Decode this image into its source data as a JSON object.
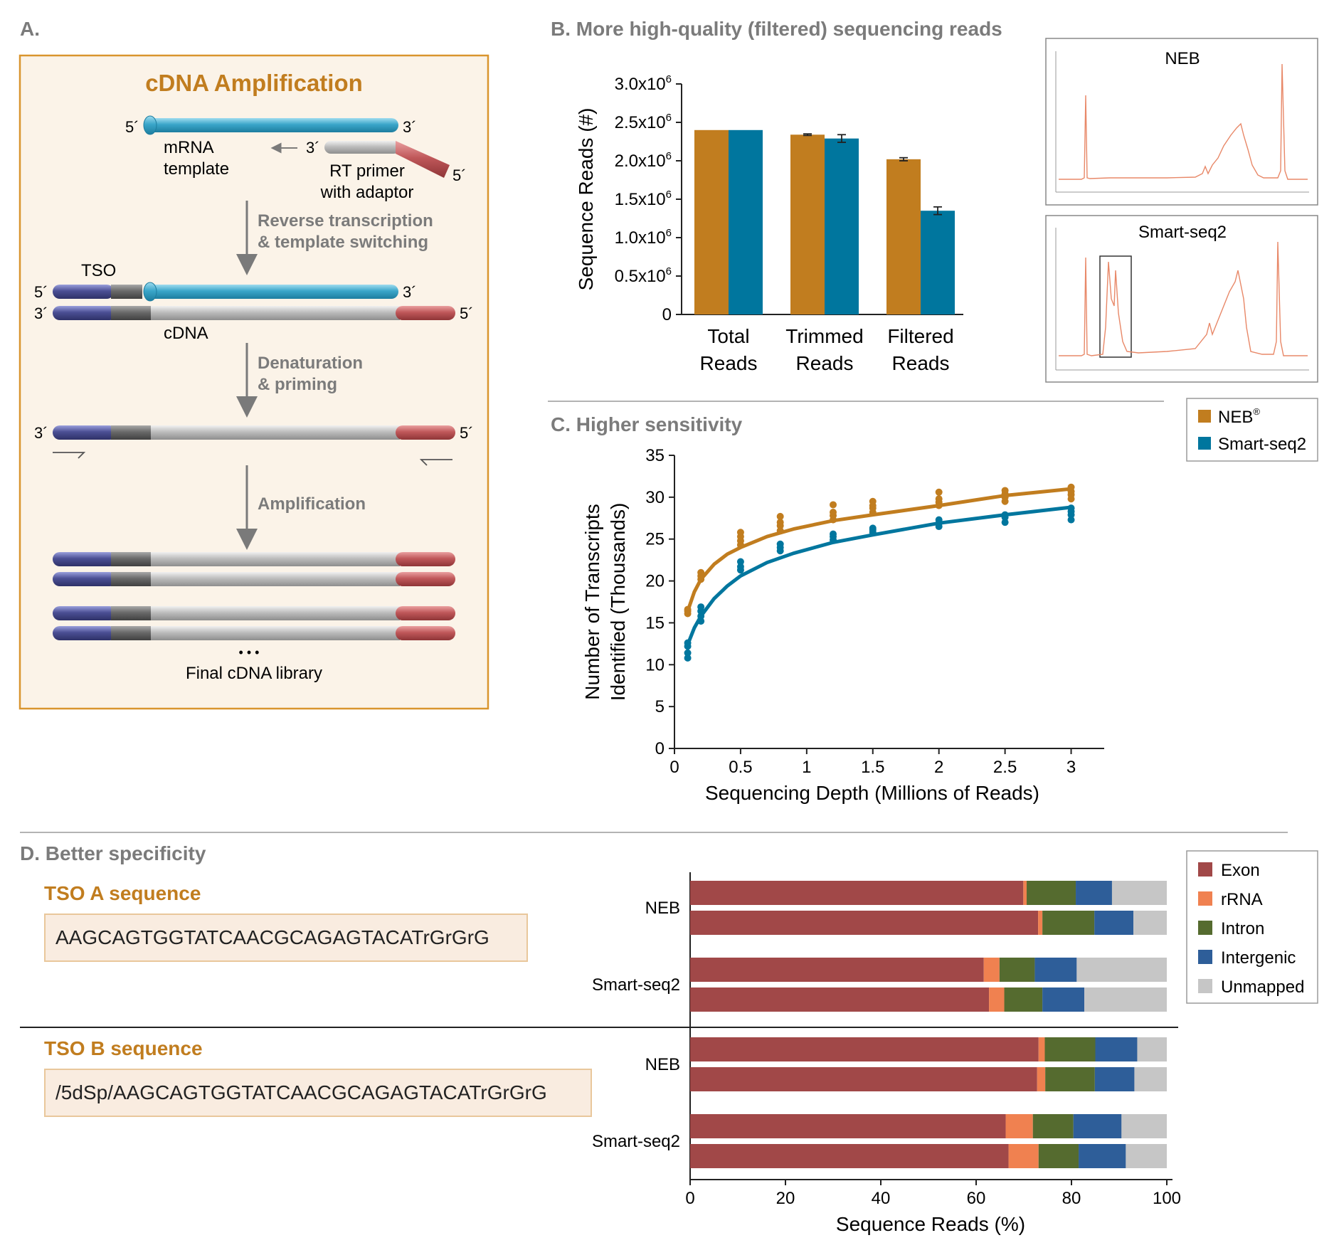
{
  "panel_a": {
    "label": "A.",
    "title": "cDNA Amplification",
    "labels": {
      "five": "5´",
      "three": "3´",
      "mrna_1": "mRNA",
      "mrna_2": "template",
      "rt_1": "RT primer",
      "rt_2": "with adaptor",
      "step1_1": "Reverse transcription",
      "step1_2": "& template switching",
      "tso": "TSO",
      "cdna": "cDNA",
      "step2_1": "Denaturation",
      "step2_2": "& priming",
      "step3": "Amplification",
      "dots": "• • •",
      "final": "Final cDNA library"
    },
    "colors": {
      "frame": "#d9952e",
      "background": "#fbf3e8",
      "mrna": "#3aa6c9",
      "tso": "#4b4f94",
      "adaptor": "#c0585a",
      "cdna": "#bdbdbd",
      "title": "#c17d1f"
    }
  },
  "panel_b": {
    "header": "B. More high-quality (filtered) sequencing reads",
    "insets": [
      {
        "title": "NEB"
      },
      {
        "title": "Smart-seq2"
      }
    ]
  },
  "panel_c": {
    "header": "C. Higher sensitivity"
  },
  "panel_d": {
    "header": "D. Better specificity",
    "tso_a": {
      "title": "TSO A sequence",
      "sequence": "AAGCAGTGGTATCAACGCAGAGTACATrGrGrG"
    },
    "tso_b": {
      "title": "TSO B sequence",
      "sequence": "/5dSp/AAGCAGTGGTATCAACGCAGAGTACATrGrGrG"
    }
  },
  "legend_bc": {
    "items": [
      {
        "name": "NEB",
        "sup": "®",
        "color": "#c17d1f"
      },
      {
        "name": "Smart-seq2",
        "sup": "",
        "color": "#00769e"
      }
    ]
  },
  "chart_data": [
    {
      "id": "B",
      "type": "bar",
      "categories": [
        "Total Reads",
        "Trimmed Reads",
        "Filtered Reads"
      ],
      "category_lines": [
        [
          "Total",
          "Reads"
        ],
        [
          "Trimmed",
          "Reads"
        ],
        [
          "Filtered",
          "Reads"
        ]
      ],
      "series": [
        {
          "name": "NEB",
          "color": "#c17d1f",
          "values": [
            2400000,
            2340000,
            2020000
          ],
          "errors": [
            0,
            10000,
            20000
          ]
        },
        {
          "name": "Smart-seq2",
          "color": "#00769e",
          "values": [
            2400000,
            2290000,
            1350000
          ],
          "errors": [
            0,
            50000,
            50000
          ]
        }
      ],
      "ylabel": "Sequence Reads (#)",
      "ylim": [
        0,
        3000000
      ],
      "yticks": [
        {
          "value": 0,
          "base": "0",
          "sup": ""
        },
        {
          "value": 500000,
          "base": "0.5x10",
          "sup": "6"
        },
        {
          "value": 1000000,
          "base": "1.0x10",
          "sup": "6"
        },
        {
          "value": 1500000,
          "base": "1.5x10",
          "sup": "6"
        },
        {
          "value": 2000000,
          "base": "2.0x10",
          "sup": "6"
        },
        {
          "value": 2500000,
          "base": "2.5x10",
          "sup": "6"
        },
        {
          "value": 3000000,
          "base": "3.0x10",
          "sup": "6"
        }
      ]
    },
    {
      "id": "C",
      "type": "scatter",
      "xlabel": "Sequencing Depth (Millions of Reads)",
      "ylabel_lines": [
        "Number of Transcripts",
        "Identified (Thousands)"
      ],
      "xlim": [
        0,
        3.25
      ],
      "ylim": [
        0,
        35
      ],
      "xticks": [
        0,
        0.5,
        1,
        1.5,
        2,
        2.5,
        3
      ],
      "xtick_labels": [
        "0",
        "0.5",
        "1",
        "1.5",
        "2",
        "2.5",
        "3"
      ],
      "yticks": [
        0,
        5,
        10,
        15,
        20,
        25,
        30,
        35
      ],
      "series": [
        {
          "name": "NEB",
          "color": "#c17d1f",
          "points": [
            [
              0.1,
              16.1
            ],
            [
              0.1,
              16.4
            ],
            [
              0.1,
              16.6
            ],
            [
              0.2,
              20.2
            ],
            [
              0.2,
              20.6
            ],
            [
              0.2,
              21.0
            ],
            [
              0.5,
              24.3
            ],
            [
              0.5,
              24.8
            ],
            [
              0.5,
              25.3
            ],
            [
              0.5,
              25.8
            ],
            [
              0.8,
              26.0
            ],
            [
              0.8,
              26.6
            ],
            [
              0.8,
              27.0
            ],
            [
              0.8,
              27.7
            ],
            [
              1.2,
              27.3
            ],
            [
              1.2,
              27.8
            ],
            [
              1.2,
              28.2
            ],
            [
              1.2,
              29.1
            ],
            [
              1.5,
              28.2
            ],
            [
              1.5,
              28.7
            ],
            [
              1.5,
              29.0
            ],
            [
              1.5,
              29.5
            ],
            [
              2.0,
              29.0
            ],
            [
              2.0,
              29.4
            ],
            [
              2.0,
              29.8
            ],
            [
              2.0,
              30.6
            ],
            [
              2.5,
              29.5
            ],
            [
              2.5,
              30.0
            ],
            [
              2.5,
              30.4
            ],
            [
              2.5,
              30.8
            ],
            [
              3.0,
              29.8
            ],
            [
              3.0,
              30.3
            ],
            [
              3.0,
              30.7
            ],
            [
              3.0,
              31.2
            ]
          ],
          "fit": [
            [
              0.1,
              16.4
            ],
            [
              0.15,
              18.7
            ],
            [
              0.2,
              20.2
            ],
            [
              0.3,
              22.0
            ],
            [
              0.4,
              23.2
            ],
            [
              0.5,
              24.0
            ],
            [
              0.7,
              25.3
            ],
            [
              0.9,
              26.2
            ],
            [
              1.2,
              27.2
            ],
            [
              1.5,
              27.9
            ],
            [
              2.0,
              29.0
            ],
            [
              2.5,
              30.2
            ],
            [
              3.0,
              31.0
            ]
          ]
        },
        {
          "name": "Smart-seq2",
          "color": "#00769e",
          "points": [
            [
              0.1,
              10.8
            ],
            [
              0.1,
              11.4
            ],
            [
              0.1,
              12.2
            ],
            [
              0.1,
              12.6
            ],
            [
              0.2,
              15.2
            ],
            [
              0.2,
              15.8
            ],
            [
              0.2,
              16.4
            ],
            [
              0.2,
              16.9
            ],
            [
              0.5,
              21.3
            ],
            [
              0.5,
              21.7
            ],
            [
              0.5,
              22.3
            ],
            [
              0.8,
              23.6
            ],
            [
              0.8,
              24.0
            ],
            [
              0.8,
              24.4
            ],
            [
              1.2,
              24.9
            ],
            [
              1.2,
              25.3
            ],
            [
              1.2,
              25.6
            ],
            [
              1.5,
              25.8
            ],
            [
              1.5,
              26.1
            ],
            [
              1.5,
              26.3
            ],
            [
              2.0,
              26.5
            ],
            [
              2.0,
              26.9
            ],
            [
              2.0,
              27.3
            ],
            [
              2.5,
              27.0
            ],
            [
              2.5,
              27.6
            ],
            [
              2.5,
              27.9
            ],
            [
              3.0,
              27.3
            ],
            [
              3.0,
              27.9
            ],
            [
              3.0,
              28.3
            ],
            [
              3.0,
              28.7
            ]
          ],
          "fit": [
            [
              0.1,
              12.4
            ],
            [
              0.15,
              14.4
            ],
            [
              0.2,
              15.8
            ],
            [
              0.3,
              17.9
            ],
            [
              0.4,
              19.4
            ],
            [
              0.5,
              20.6
            ],
            [
              0.7,
              22.2
            ],
            [
              0.9,
              23.3
            ],
            [
              1.2,
              24.6
            ],
            [
              1.5,
              25.5
            ],
            [
              2.0,
              26.9
            ],
            [
              2.5,
              27.9
            ],
            [
              3.0,
              28.8
            ]
          ]
        }
      ]
    },
    {
      "id": "D",
      "type": "bar",
      "orientation": "horizontal",
      "stacked": true,
      "xlabel": "Sequence Reads (%)",
      "xlim": [
        0,
        100
      ],
      "xticks": [
        0,
        20,
        40,
        60,
        80,
        100
      ],
      "segments": [
        {
          "name": "Exon",
          "color": "#a14848"
        },
        {
          "name": "rRNA",
          "color": "#f08150"
        },
        {
          "name": "Intron",
          "color": "#556b2f"
        },
        {
          "name": "Intergenic",
          "color": "#2e5e99"
        },
        {
          "name": "Unmapped",
          "color": "#c6c6c6"
        }
      ],
      "groups": [
        {
          "label": "NEB",
          "bars": [
            [
              69.9,
              0.7,
              10.3,
              7.6,
              11.5
            ],
            [
              73.0,
              0.9,
              10.9,
              8.2,
              7.0
            ]
          ]
        },
        {
          "label": "Smart-seq2",
          "bars": [
            [
              61.6,
              3.3,
              7.4,
              8.8,
              18.9
            ],
            [
              62.7,
              3.2,
              8.0,
              8.8,
              17.3
            ]
          ]
        },
        {
          "label": "NEB",
          "bars": [
            [
              73.1,
              1.3,
              10.6,
              8.8,
              6.2
            ],
            [
              72.8,
              1.7,
              10.4,
              8.3,
              6.8
            ]
          ]
        },
        {
          "label": "Smart-seq2",
          "bars": [
            [
              66.2,
              5.7,
              8.5,
              10.1,
              9.5
            ],
            [
              66.8,
              6.3,
              8.4,
              9.9,
              8.6
            ]
          ]
        }
      ]
    }
  ]
}
